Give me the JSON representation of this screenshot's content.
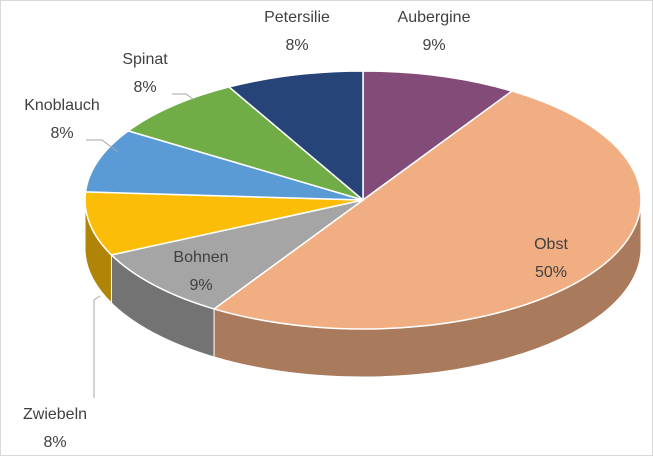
{
  "chart_data": {
    "type": "pie",
    "categories": [
      "Aubergine",
      "Obst",
      "Bohnen",
      "Zwiebeln",
      "Knoblauch",
      "Spinat",
      "Petersilie"
    ],
    "values": [
      9,
      50,
      9,
      8,
      8,
      8,
      8
    ],
    "value_labels": [
      "9%",
      "50%",
      "9%",
      "8%",
      "8%",
      "8%",
      "8%"
    ],
    "colors": [
      "#834b78",
      "#f1ae82",
      "#a5a5a5",
      "#fbbd08",
      "#5b9bd5",
      "#70ad47",
      "#264478"
    ]
  }
}
